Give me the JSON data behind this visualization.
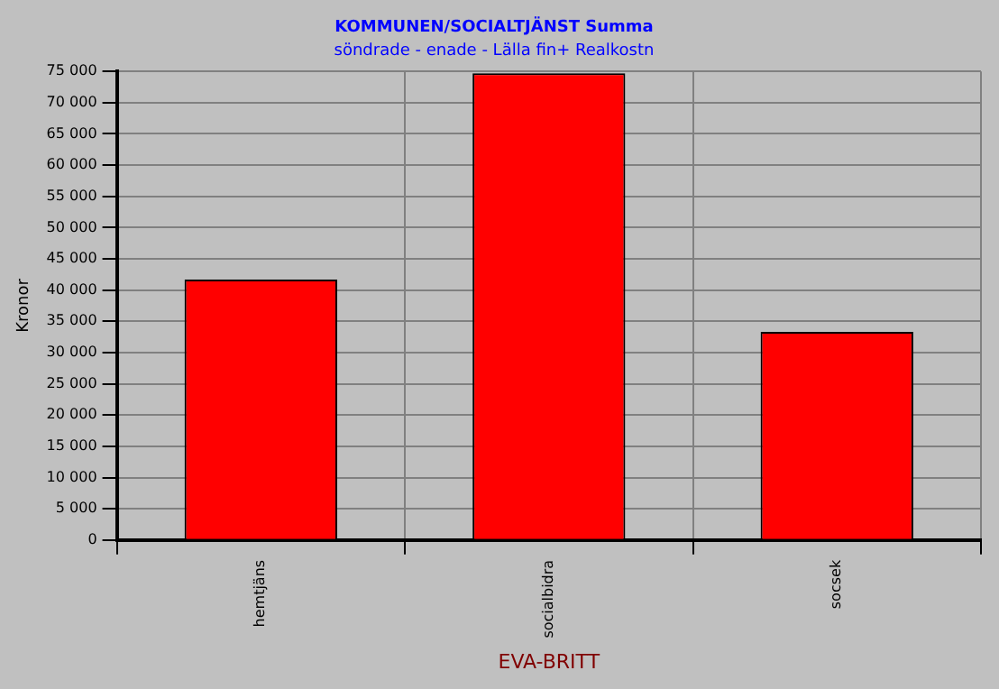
{
  "chart_data": {
    "type": "bar",
    "title": "KOMMUNEN/SOCIALTJÄNST Summa",
    "subtitle": "söndrade - enade - Lälla fin+ Realkostn",
    "ylabel": "Kronor",
    "xlabel": "EVA-BRITT",
    "categories": [
      "hemtjäns",
      "socialbidra",
      "socsek"
    ],
    "values": [
      41700,
      74700,
      33300
    ],
    "color": "#ff0000",
    "ylim": [
      0,
      75000
    ],
    "yticks": [
      {
        "value": 0,
        "label": "0"
      },
      {
        "value": 5000,
        "label": "5 000"
      },
      {
        "value": 10000,
        "label": "10 000"
      },
      {
        "value": 15000,
        "label": "15 000"
      },
      {
        "value": 20000,
        "label": "20 000"
      },
      {
        "value": 25000,
        "label": "25 000"
      },
      {
        "value": 30000,
        "label": "30 000"
      },
      {
        "value": 35000,
        "label": "35 000"
      },
      {
        "value": 40000,
        "label": "40 000"
      },
      {
        "value": 45000,
        "label": "45 000"
      },
      {
        "value": 50000,
        "label": "50 000"
      },
      {
        "value": 55000,
        "label": "55 000"
      },
      {
        "value": 60000,
        "label": "60 000"
      },
      {
        "value": 65000,
        "label": "65 000"
      },
      {
        "value": 70000,
        "label": "70 000"
      },
      {
        "value": 75000,
        "label": "75 000"
      }
    ],
    "grid": true,
    "legend": false
  }
}
